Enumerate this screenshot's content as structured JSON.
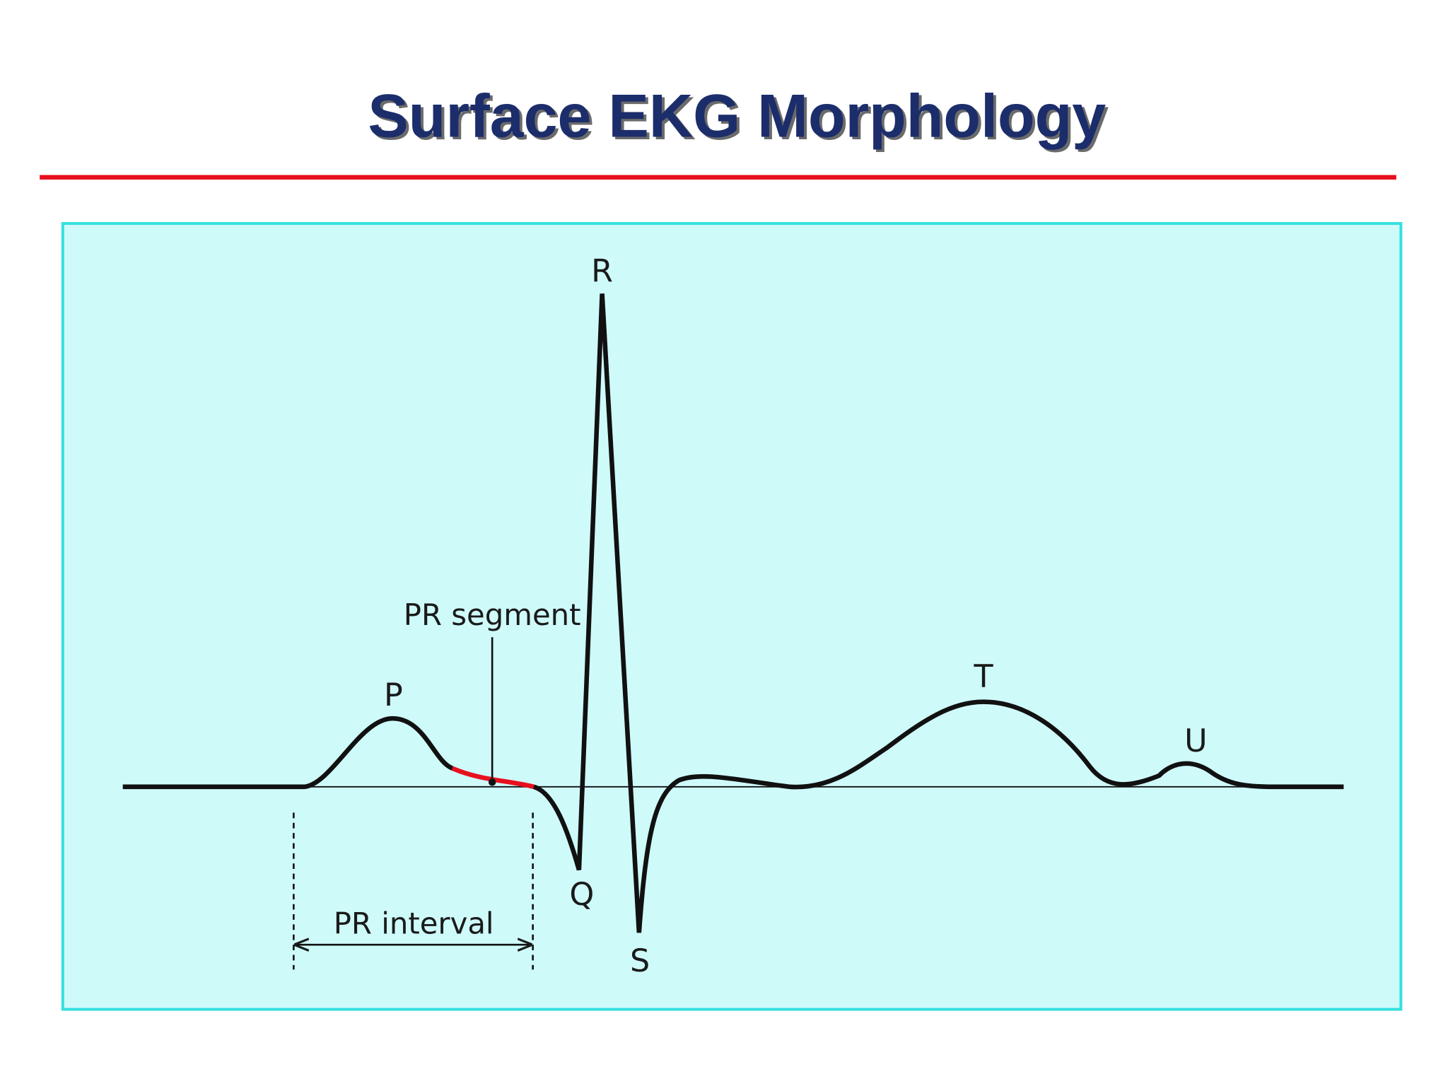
{
  "title": "Surface EKG Morphology",
  "waves": {
    "p": "P",
    "q": "Q",
    "r": "R",
    "s": "S",
    "t": "T",
    "u": "U"
  },
  "annotations": {
    "pr_segment": "PR segment",
    "pr_interval": "PR interval"
  }
}
